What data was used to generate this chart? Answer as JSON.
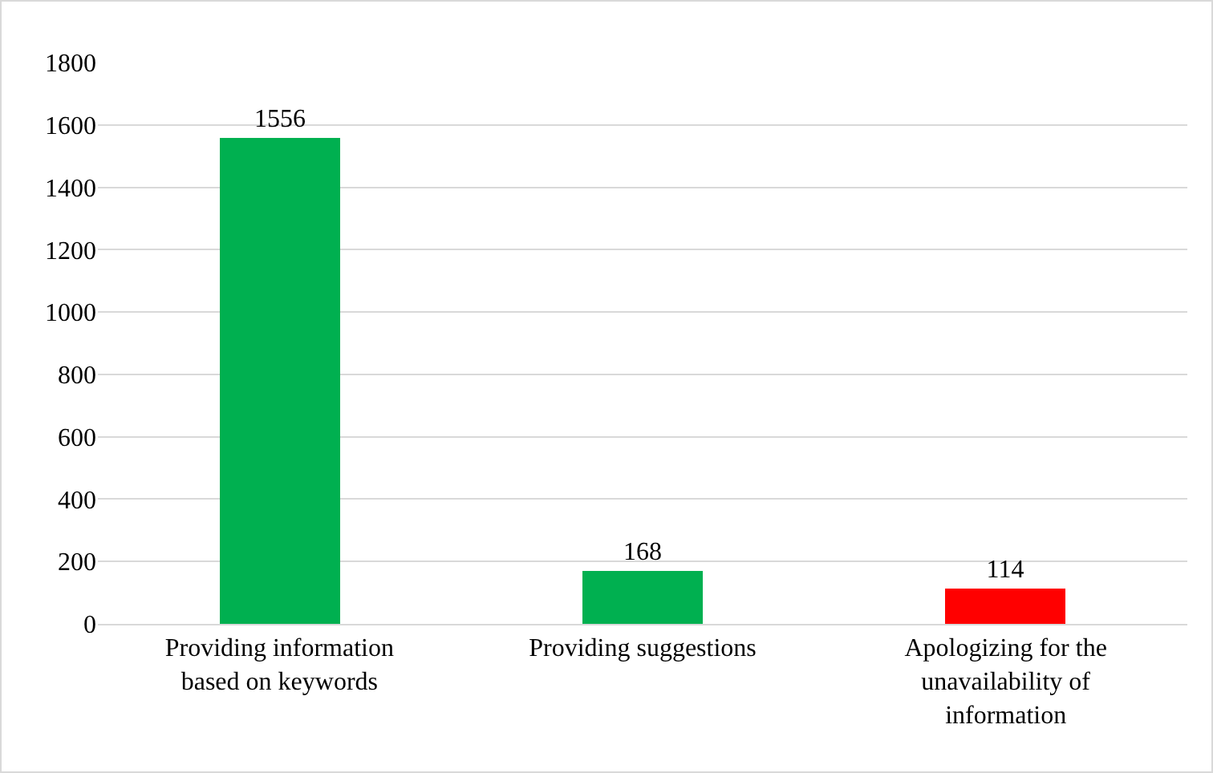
{
  "chart_data": {
    "type": "bar",
    "categories": [
      "Providing information based on keywords",
      "Providing suggestions",
      "Apologizing for the unavailability of information"
    ],
    "values": [
      1556,
      168,
      114
    ],
    "colors": [
      "#00b050",
      "#00b050",
      "#ff0000"
    ],
    "ylim": [
      0,
      1800
    ],
    "yticks": [
      0,
      200,
      400,
      600,
      800,
      1000,
      1200,
      1400,
      1600,
      1800
    ],
    "grid": "y",
    "data_labels": true
  }
}
